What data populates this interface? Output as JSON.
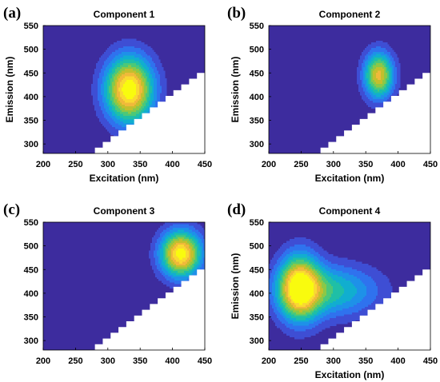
{
  "chart_data": [
    {
      "type": "heatmap",
      "panel_label": "(a)",
      "title": "Component 1",
      "xlabel": "Excitation (nm)",
      "ylabel": "Emission (nm)",
      "xlim": [
        200,
        450
      ],
      "ylim": [
        280,
        550
      ],
      "xticks": [
        "200",
        "250",
        "300",
        "350",
        "400",
        "450"
      ],
      "yticks": [
        "300",
        "350",
        "400",
        "450",
        "500",
        "550"
      ],
      "peaks": [
        {
          "ex": 333,
          "em": 415,
          "sx": 26,
          "sy": 48,
          "amp": 1.0,
          "skew": 0
        }
      ],
      "grid": false
    },
    {
      "type": "heatmap",
      "panel_label": "(b)",
      "title": "Component 2",
      "xlabel": "Excitation (nm)",
      "ylabel": "Emission (nm)",
      "xlim": [
        200,
        450
      ],
      "ylim": [
        280,
        550
      ],
      "xticks": [
        "200",
        "250",
        "300",
        "350",
        "400",
        "450"
      ],
      "yticks": [
        "300",
        "350",
        "400",
        "450",
        "500",
        "550"
      ],
      "peaks": [
        {
          "ex": 370,
          "em": 445,
          "sx": 16,
          "sy": 34,
          "amp": 0.78,
          "skew": 0
        }
      ],
      "grid": false
    },
    {
      "type": "heatmap",
      "panel_label": "(c)",
      "title": "Component 3",
      "xlabel": "",
      "ylabel": "",
      "xlim": [
        200,
        450
      ],
      "ylim": [
        280,
        550
      ],
      "xticks": [
        "200",
        "250",
        "300",
        "350",
        "400",
        "450"
      ],
      "yticks": [
        "300",
        "350",
        "400",
        "450",
        "500",
        "550"
      ],
      "peaks": [
        {
          "ex": 413,
          "em": 483,
          "sx": 22,
          "sy": 34,
          "amp": 0.97,
          "skew": 0
        },
        {
          "ex": 196,
          "em": 490,
          "sx": 8,
          "sy": 18,
          "amp": 0.1,
          "skew": 0
        }
      ],
      "grid": false
    },
    {
      "type": "heatmap",
      "panel_label": "(d)",
      "title": "Component 4",
      "xlabel": "Excitation (nm)",
      "ylabel": "Emission (nm)",
      "xlim": [
        200,
        450
      ],
      "ylim": [
        280,
        550
      ],
      "xticks": [
        "200",
        "250",
        "300",
        "350",
        "400",
        "450"
      ],
      "yticks": [
        "300",
        "350",
        "400",
        "450",
        "500",
        "550"
      ],
      "peaks": [
        {
          "ex": 247,
          "em": 412,
          "sx": 22,
          "sy": 48,
          "amp": 0.9,
          "skew": 0
        },
        {
          "ex": 295,
          "em": 405,
          "sx": 52,
          "sy": 38,
          "amp": 0.45,
          "skew": 0
        }
      ],
      "grid": false
    }
  ],
  "colormap": [
    "#3d2c9e",
    "#3e4ed4",
    "#2f72ee",
    "#1e91e8",
    "#11aecf",
    "#1fbfa6",
    "#4cc878",
    "#8bc847",
    "#c3bf2d",
    "#f0b93a",
    "#f9d931",
    "#f9fb0e"
  ],
  "no_data_color": "#ffffff"
}
